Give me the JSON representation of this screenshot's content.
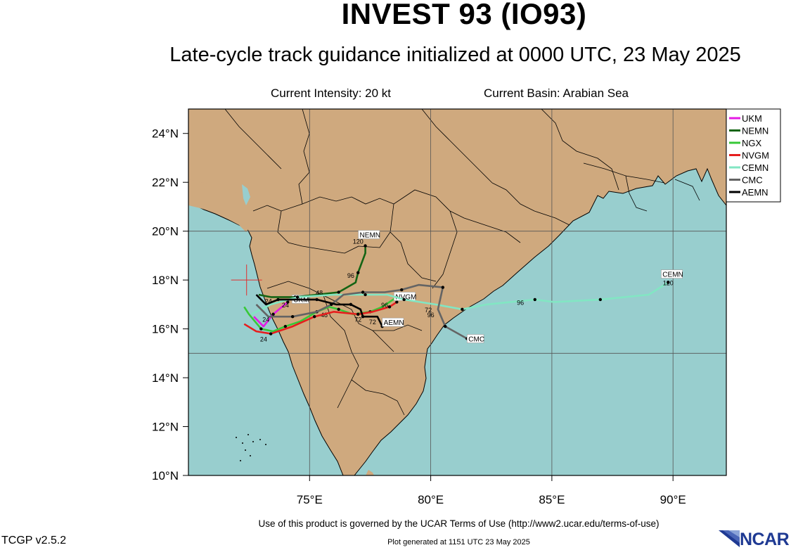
{
  "header": {
    "title": "INVEST 93 (IO93)",
    "subtitle": "Late-cycle track guidance initialized at 0000 UTC, 23 May 2025",
    "intensity": "Current Intensity: 20 kt",
    "basin": "Current Basin: Arabian Sea"
  },
  "footer": {
    "terms": "Use of this product is governed by the UCAR Terms of Use (http://www2.ucar.edu/terms-of-use)",
    "version": "TCGP v2.5.2",
    "generated": "Plot generated at 1151 UTC   23 May 2025",
    "logo_text": "NCAR"
  },
  "map": {
    "lon_range": [
      70,
      92.2
    ],
    "lat_range": [
      10,
      25
    ],
    "lat_labels": [
      "10°N",
      "12°N",
      "14°N",
      "16°N",
      "18°N",
      "20°N",
      "22°N",
      "24°N"
    ],
    "lon_labels": [
      "75°E",
      "80°E",
      "85°E",
      "90°E"
    ],
    "colors": {
      "land": "#cfa97e",
      "ocean": "#98cece",
      "border": "#000000"
    },
    "current_position": {
      "lon": 72.4,
      "lat": 18.0
    },
    "legend": [
      {
        "name": "UKM",
        "color": "#e41ae4"
      },
      {
        "name": "NEMN",
        "color": "#146414"
      },
      {
        "name": "NGX",
        "color": "#37c837"
      },
      {
        "name": "NVGM",
        "color": "#e61e1e"
      },
      {
        "name": "CEMN",
        "color": "#82e6c3"
      },
      {
        "name": "CMC",
        "color": "#646464"
      },
      {
        "name": "AEMN",
        "color": "#000000"
      }
    ]
  },
  "tracks": [
    {
      "name": "UKM",
      "color": "#e41ae4",
      "end_label": "UKM",
      "points": [
        [
          72.7,
          16.5
        ],
        [
          73.1,
          16.1
        ],
        [
          73.5,
          16.6
        ],
        [
          74.1,
          17.1
        ]
      ],
      "hour_labels": [
        {
          "text": "24",
          "lon": 74.0,
          "lat": 17.0
        }
      ]
    },
    {
      "name": "NEMN",
      "color": "#146414",
      "end_label": "NEMN",
      "points": [
        [
          72.9,
          17.4
        ],
        [
          73.4,
          17.3
        ],
        [
          74.4,
          17.3
        ],
        [
          75.3,
          17.4
        ],
        [
          76.2,
          17.5
        ],
        [
          76.9,
          17.9
        ],
        [
          77.0,
          18.3
        ],
        [
          77.3,
          19.1
        ],
        [
          77.3,
          19.4
        ]
      ],
      "hour_labels": [
        {
          "text": "24",
          "lon": 73.3,
          "lat": 17.15
        },
        {
          "text": "48",
          "lon": 75.4,
          "lat": 17.5
        },
        {
          "text": "96",
          "lon": 76.7,
          "lat": 18.2
        },
        {
          "text": "120",
          "lon": 77.0,
          "lat": 19.6
        }
      ]
    },
    {
      "name": "NGX",
      "color": "#37c837",
      "end_label": "",
      "points": [
        [
          72.3,
          16.9
        ],
        [
          72.5,
          16.6
        ],
        [
          73.0,
          16.0
        ],
        [
          73.5,
          15.9
        ],
        [
          74.0,
          16.1
        ],
        [
          74.6,
          16.3
        ],
        [
          75.3,
          16.7
        ],
        [
          75.8,
          16.9
        ],
        [
          76.2,
          16.8
        ],
        [
          76.8,
          16.6
        ],
        [
          77.5,
          16.7
        ],
        [
          78.0,
          16.9
        ],
        [
          78.6,
          17.3
        ]
      ],
      "hour_labels": [
        {
          "text": "48",
          "lon": 75.6,
          "lat": 16.6
        },
        {
          "text": "72",
          "lon": 77.0,
          "lat": 16.4
        }
      ]
    },
    {
      "name": "NVGM",
      "color": "#e61e1e",
      "end_label": "NVGM",
      "points": [
        [
          72.3,
          16.2
        ],
        [
          72.8,
          15.9
        ],
        [
          73.4,
          15.8
        ],
        [
          74.3,
          16.1
        ],
        [
          75.2,
          16.5
        ],
        [
          76.0,
          16.7
        ],
        [
          77.0,
          16.6
        ],
        [
          77.6,
          16.7
        ],
        [
          78.3,
          16.9
        ],
        [
          78.6,
          17.1
        ]
      ],
      "hour_labels": [
        {
          "text": "24",
          "lon": 73.1,
          "lat": 15.6
        },
        {
          "text": "96",
          "lon": 78.1,
          "lat": 17.0
        }
      ]
    },
    {
      "name": "CEMN",
      "color": "#82e6c3",
      "end_label": "CEMN",
      "points": [
        [
          72.6,
          16.6
        ],
        [
          73.4,
          17.0
        ],
        [
          74.5,
          17.3
        ],
        [
          76.0,
          17.4
        ],
        [
          77.3,
          17.4
        ],
        [
          78.2,
          17.4
        ],
        [
          78.9,
          17.2
        ],
        [
          80.2,
          17.0
        ],
        [
          81.3,
          16.8
        ],
        [
          82.3,
          17.0
        ],
        [
          84.3,
          17.2
        ],
        [
          85.1,
          17.1
        ],
        [
          87.0,
          17.2
        ],
        [
          89.0,
          17.4
        ],
        [
          89.8,
          17.9
        ]
      ],
      "hour_labels": [
        {
          "text": "72",
          "lon": 79.9,
          "lat": 16.8
        },
        {
          "text": "96",
          "lon": 83.7,
          "lat": 17.1
        },
        {
          "text": "120",
          "lon": 89.8,
          "lat": 17.9
        }
      ]
    },
    {
      "name": "CMC",
      "color": "#646464",
      "end_label": "CMC",
      "points": [
        [
          72.8,
          17.0
        ],
        [
          73.3,
          16.5
        ],
        [
          74.3,
          16.5
        ],
        [
          75.3,
          16.7
        ],
        [
          75.9,
          17.0
        ],
        [
          76.4,
          17.4
        ],
        [
          77.2,
          17.5
        ],
        [
          78.1,
          17.5
        ],
        [
          78.8,
          17.6
        ],
        [
          79.5,
          17.8
        ],
        [
          80.5,
          17.7
        ],
        [
          80.3,
          16.8
        ],
        [
          80.6,
          16.1
        ],
        [
          81.5,
          15.6
        ]
      ],
      "hour_labels": [
        {
          "text": "24",
          "lon": 73.2,
          "lat": 16.4
        },
        {
          "text": "96",
          "lon": 80.0,
          "lat": 16.6
        }
      ]
    },
    {
      "name": "AEMN",
      "color": "#000000",
      "end_label": "AEMN",
      "points": [
        [
          72.8,
          17.4
        ],
        [
          73.2,
          17.0
        ],
        [
          73.7,
          17.2
        ],
        [
          74.4,
          17.2
        ],
        [
          75.3,
          17.2
        ],
        [
          76.1,
          17.0
        ],
        [
          76.7,
          17.0
        ],
        [
          77.1,
          16.8
        ],
        [
          77.2,
          16.5
        ],
        [
          77.8,
          16.5
        ],
        [
          78.0,
          16.1
        ]
      ],
      "hour_labels": [
        {
          "text": "72",
          "lon": 77.6,
          "lat": 16.3
        }
      ]
    }
  ]
}
